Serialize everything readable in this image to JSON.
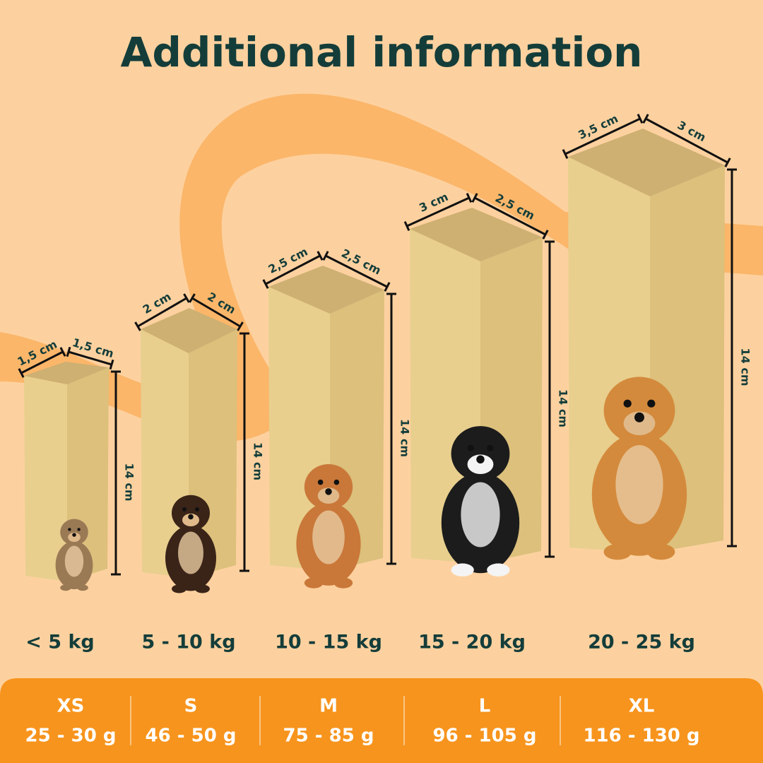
{
  "title": "Additional information",
  "products": [
    {
      "width": "1,5 cm",
      "depth": "1,5 cm",
      "height": "14 cm",
      "weight": "< 5 kg",
      "size": "XS",
      "grams": "25 - 30 g"
    },
    {
      "width": "2 cm",
      "depth": "2 cm",
      "height": "14 cm",
      "weight": "5 - 10 kg",
      "size": "S",
      "grams": "46 - 50 g"
    },
    {
      "width": "2,5 cm",
      "depth": "2,5 cm",
      "height": "14 cm",
      "weight": "10 - 15 kg",
      "size": "M",
      "grams": "75 - 85 g"
    },
    {
      "width": "3 cm",
      "depth": "2,5 cm",
      "height": "14 cm",
      "weight": "15 - 20 kg",
      "size": "L",
      "grams": "96 - 105 g"
    },
    {
      "width": "3,5 cm",
      "depth": "3 cm",
      "height": "14 cm",
      "weight": "20 - 25 kg",
      "size": "XL",
      "grams": "116 - 130 g"
    }
  ]
}
